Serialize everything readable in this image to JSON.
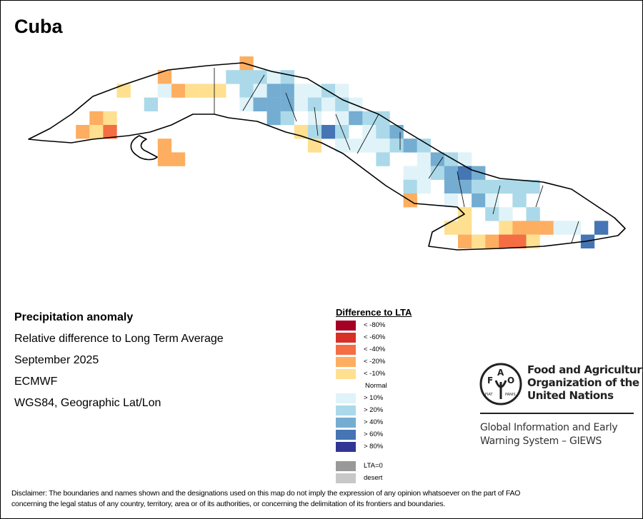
{
  "title": "Cuba",
  "info": {
    "heading": "Precipitation anomaly",
    "subtitle": "Relative difference to Long Term Average",
    "period": "September 2025",
    "source": "ECMWF",
    "projection": "WGS84, Geographic Lat/Lon"
  },
  "legend": {
    "title": "Difference to LTA",
    "items": [
      {
        "label": "< -80%",
        "color": "#a50026"
      },
      {
        "label": "< -60%",
        "color": "#d73027"
      },
      {
        "label": "< -40%",
        "color": "#f46d43"
      },
      {
        "label": "< -20%",
        "color": "#fdae61"
      },
      {
        "label": "< -10%",
        "color": "#fee090"
      },
      {
        "label": "Normal",
        "color": "#ffffff"
      },
      {
        "label": "> 10%",
        "color": "#e0f3f8"
      },
      {
        "label": "> 20%",
        "color": "#abd9e9"
      },
      {
        "label": "> 40%",
        "color": "#74add1"
      },
      {
        "label": "> 60%",
        "color": "#4575b4"
      },
      {
        "label": "> 80%",
        "color": "#313695"
      },
      {
        "label": "LTA=0",
        "color": "#999999"
      },
      {
        "label": "desert",
        "color": "#c8c8c8"
      }
    ]
  },
  "fao": {
    "logo_letters": "FAO FIAT PANIS",
    "name_lines": [
      "Food and Agriculture",
      "Organization of the",
      "United Nations"
    ],
    "giews_lines": [
      "Global Information and Early",
      "Warning System – GIEWS"
    ]
  },
  "disclaimer": [
    "Disclaimer: The boundaries and names shown and the designations used on this map do not imply the expression of any opinion whatsoever on the part of FAO",
    "concerning the legal status of any country, territory, area or of its authorities, or concerning the delimitation of its frontiers and boundaries."
  ]
}
